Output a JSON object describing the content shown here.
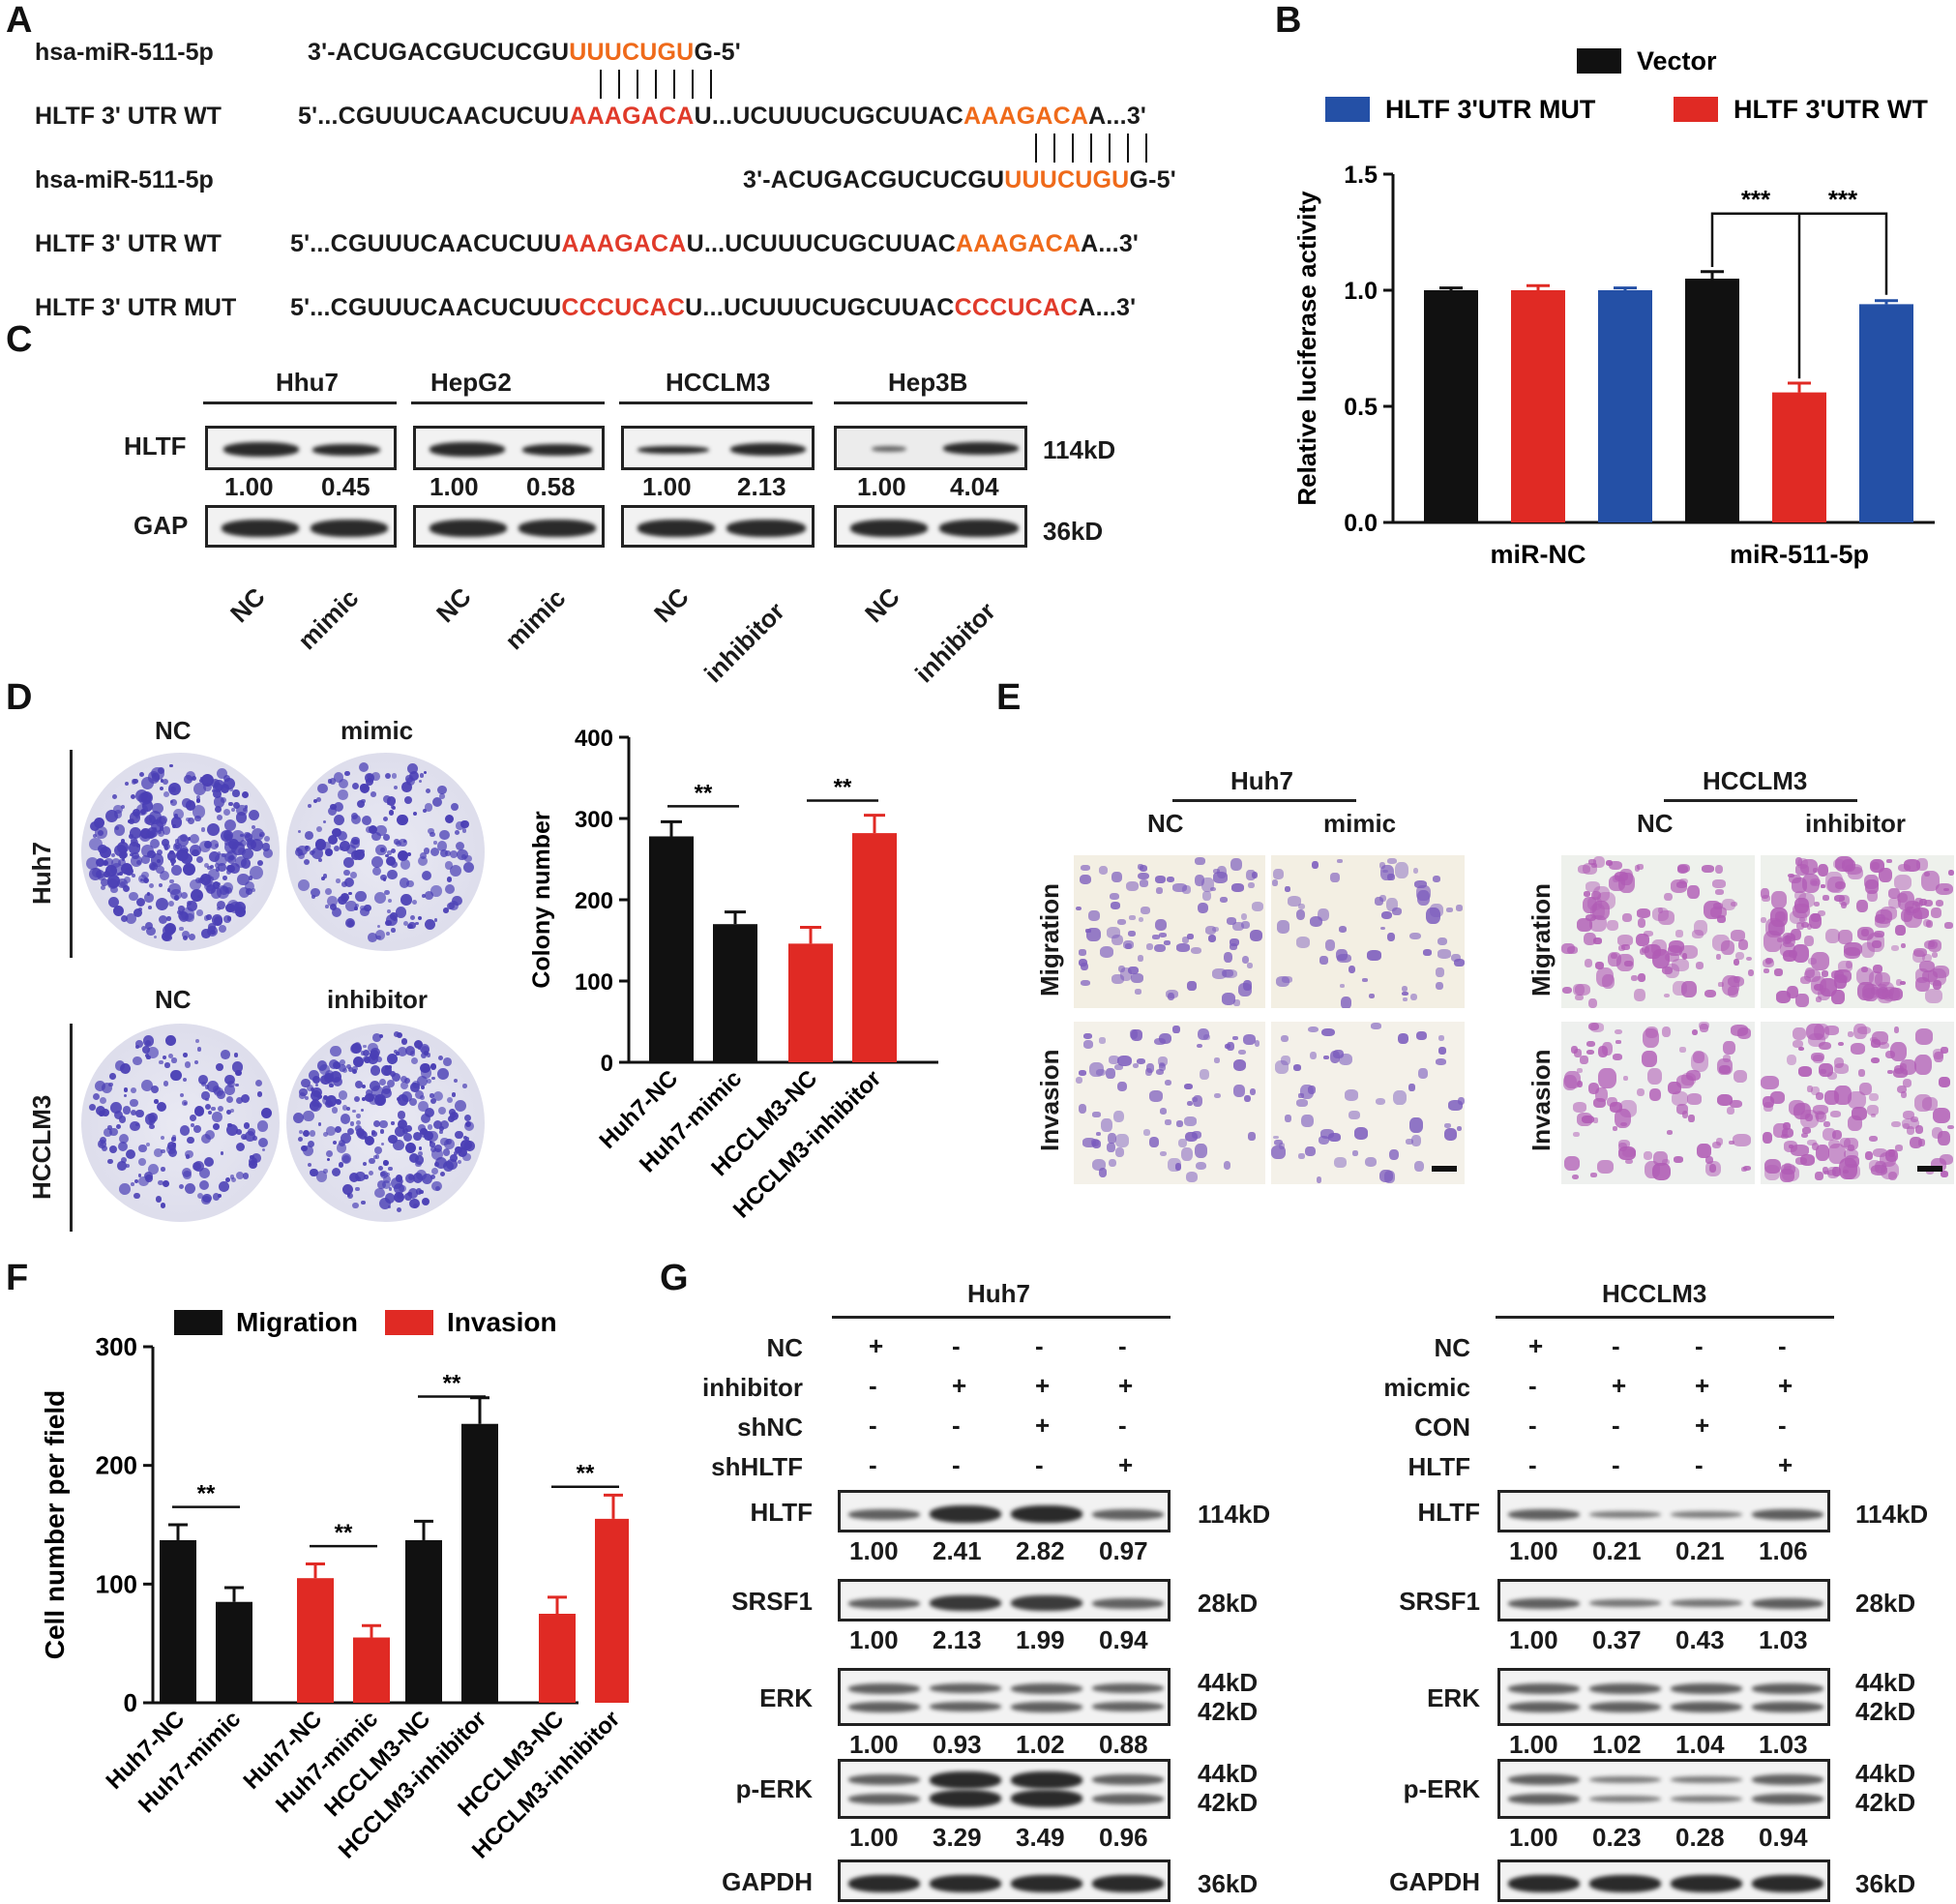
{
  "panels": {
    "A": "A",
    "B": "B",
    "C": "C",
    "D": "D",
    "E": "E",
    "F": "F",
    "G": "G"
  },
  "panelA": {
    "rows": [
      {
        "label": "hsa-miR-511-5p",
        "seq_pre": "3'-ACUGACGUCUCGU",
        "seq_hl": "UUUCUGU",
        "seq_post": "G-5'"
      },
      {
        "label": "HLTF 3' UTR WT",
        "seq_pre": "5'...CGUUUCAACUCUU",
        "seq_hl1": "AAAGACA",
        "seq_mid": "U...UCUUUCUGCUUAC",
        "seq_hl2": "AAAGACA",
        "seq_post": "A...3'"
      },
      {
        "label": "hsa-miR-511-5p",
        "seq_pre": "3'-ACUGACGUCUCGU",
        "seq_hl": "UUUCUGU",
        "seq_post": "G-5'"
      },
      {
        "label": "HLTF 3' UTR WT",
        "seq_pre": "5'...CGUUUCAACUCUU",
        "seq_hl1": "AAAGACA",
        "seq_mid": "U...UCUUUCUGCUUAC",
        "seq_hl2": "AAAGACA",
        "seq_post": "A...3'"
      },
      {
        "label": "HLTF 3' UTR MUT",
        "seq_pre": "5'...CGUUUCAACUCUU",
        "seq_hl1": "CCCUCAC",
        "seq_mid": "U...UCUUUCUGCUUAC",
        "seq_hl2": "CCCUCAC",
        "seq_post": "A...3'"
      }
    ]
  },
  "panelC": {
    "cells": [
      "Hhu7",
      "HepG2",
      "HCCLM3",
      "Hep3B"
    ],
    "rows": [
      "HLTF",
      "GAP"
    ],
    "kd": [
      "114kD",
      "36kD"
    ],
    "values": [
      "1.00",
      "0.45",
      "1.00",
      "0.58",
      "1.00",
      "2.13",
      "1.00",
      "4.04"
    ],
    "lanes": [
      "NC",
      "mimic",
      "NC",
      "mimic",
      "NC",
      "inhibitor",
      "NC",
      "inhibitor"
    ]
  },
  "panelD": {
    "col_labels_top": [
      "NC",
      "mimic"
    ],
    "col_labels_bottom": [
      "NC",
      "inhibitor"
    ],
    "row_labels": [
      "Huh7",
      "HCCLM3"
    ]
  },
  "panelE": {
    "groups": [
      {
        "title": "Huh7",
        "cols": [
          "NC",
          "mimic"
        ]
      },
      {
        "title": "HCCLM3",
        "cols": [
          "NC",
          "inhibitor"
        ]
      }
    ],
    "rows": [
      "Migration",
      "Invasion"
    ]
  },
  "panelG": {
    "groups": [
      {
        "title": "Huh7",
        "conds": [
          {
            "name": "NC",
            "vals": [
              "+",
              "-",
              "-",
              "-"
            ]
          },
          {
            "name": "inhibitor",
            "vals": [
              "-",
              "+",
              "+",
              "+"
            ]
          },
          {
            "name": "shNC",
            "vals": [
              "-",
              "-",
              "+",
              "-"
            ]
          },
          {
            "name": "shHLTF",
            "vals": [
              "-",
              "-",
              "-",
              "+"
            ]
          }
        ],
        "blots": [
          {
            "name": "HLTF",
            "kd": [
              "114kD"
            ],
            "values": [
              "1.00",
              "2.41",
              "2.82",
              "0.97"
            ]
          },
          {
            "name": "SRSF1",
            "kd": [
              "28kD"
            ],
            "values": [
              "1.00",
              "2.13",
              "1.99",
              "0.94"
            ]
          },
          {
            "name": "ERK",
            "kd": [
              "44kD",
              "42kD"
            ],
            "values": [
              "1.00",
              "0.93",
              "1.02",
              "0.88"
            ]
          },
          {
            "name": "p-ERK",
            "kd": [
              "44kD",
              "42kD"
            ],
            "values": [
              "1.00",
              "3.29",
              "3.49",
              "0.96"
            ]
          },
          {
            "name": "GAPDH",
            "kd": [
              "36kD"
            ],
            "values": []
          }
        ]
      },
      {
        "title": "HCCLM3",
        "conds": [
          {
            "name": "NC",
            "vals": [
              "+",
              "-",
              "-",
              "-"
            ]
          },
          {
            "name": "micmic",
            "vals": [
              "-",
              "+",
              "+",
              "+"
            ]
          },
          {
            "name": "CON",
            "vals": [
              "-",
              "-",
              "+",
              "-"
            ]
          },
          {
            "name": "HLTF",
            "vals": [
              "-",
              "-",
              "-",
              "+"
            ]
          }
        ],
        "blots": [
          {
            "name": "HLTF",
            "kd": [
              "114kD"
            ],
            "values": [
              "1.00",
              "0.21",
              "0.21",
              "1.06"
            ]
          },
          {
            "name": "SRSF1",
            "kd": [
              "28kD"
            ],
            "values": [
              "1.00",
              "0.37",
              "0.43",
              "1.03"
            ]
          },
          {
            "name": "ERK",
            "kd": [
              "44kD",
              "42kD"
            ],
            "values": [
              "1.00",
              "1.02",
              "1.04",
              "1.03"
            ]
          },
          {
            "name": "p-ERK",
            "kd": [
              "44kD",
              "42kD"
            ],
            "values": [
              "1.00",
              "0.23",
              "0.28",
              "0.94"
            ]
          },
          {
            "name": "GAPDH",
            "kd": [
              "36kD"
            ],
            "values": []
          }
        ]
      }
    ]
  },
  "chart_data": [
    {
      "id": "B",
      "type": "bar",
      "categories": [
        "miR-NC",
        "miR-511-5p"
      ],
      "series": [
        {
          "name": "Vector",
          "color": "#111111",
          "values": [
            1.0,
            1.05
          ],
          "errors": [
            0.01,
            0.03
          ]
        },
        {
          "name": "HLTF 3'UTR WT",
          "color": "#e02a24",
          "values": [
            1.0,
            0.56
          ],
          "errors": [
            0.02,
            0.04
          ]
        },
        {
          "name": "HLTF 3'UTR MUT",
          "color": "#2450a6",
          "values": [
            1.0,
            0.94
          ],
          "errors": [
            0.01,
            0.015
          ]
        }
      ],
      "ylabel": "Relative luciferase activity",
      "ylim": [
        0,
        1.5
      ],
      "yticks": [
        "0.0",
        "0.5",
        "1.0",
        "1.5"
      ],
      "significance": [
        "***",
        "***"
      ]
    },
    {
      "id": "D",
      "type": "bar",
      "categories": [
        "Huh7-NC",
        "Huh7-mimic",
        "HCCLM3-NC",
        "HCCLM3-inhibitor"
      ],
      "colors": [
        "#111111",
        "#111111",
        "#e02a24",
        "#e02a24"
      ],
      "values": [
        278,
        170,
        146,
        282
      ],
      "errors": [
        18,
        15,
        20,
        22
      ],
      "ylabel": "Colony number",
      "ylim": [
        0,
        400
      ],
      "yticks": [
        "0",
        "100",
        "200",
        "300",
        "400"
      ],
      "significance": [
        "**",
        "**"
      ]
    },
    {
      "id": "F",
      "type": "bar",
      "categories": [
        "Huh7-NC",
        "Huh7-mimic",
        "Huh7-NC",
        "Huh7-mimic",
        "HCCLM3-NC",
        "HCCLM3-inhibitor",
        "HCCLM3-NC",
        "HCCLM3-inhibitor"
      ],
      "series": [
        {
          "name": "Migration",
          "color": "#111111"
        },
        {
          "name": "Invasion",
          "color": "#e02a24"
        }
      ],
      "colors": [
        "#111111",
        "#111111",
        "#e02a24",
        "#e02a24",
        "#111111",
        "#111111",
        "#e02a24",
        "#e02a24"
      ],
      "values": [
        137,
        85,
        105,
        55,
        137,
        235,
        75,
        155
      ],
      "errors": [
        13,
        12,
        12,
        10,
        16,
        22,
        14,
        20
      ],
      "ylabel": "Cell number per field",
      "ylim": [
        0,
        300
      ],
      "yticks": [
        "0",
        "100",
        "200",
        "300"
      ],
      "significance": [
        "**",
        "**",
        "**",
        "**"
      ]
    }
  ]
}
